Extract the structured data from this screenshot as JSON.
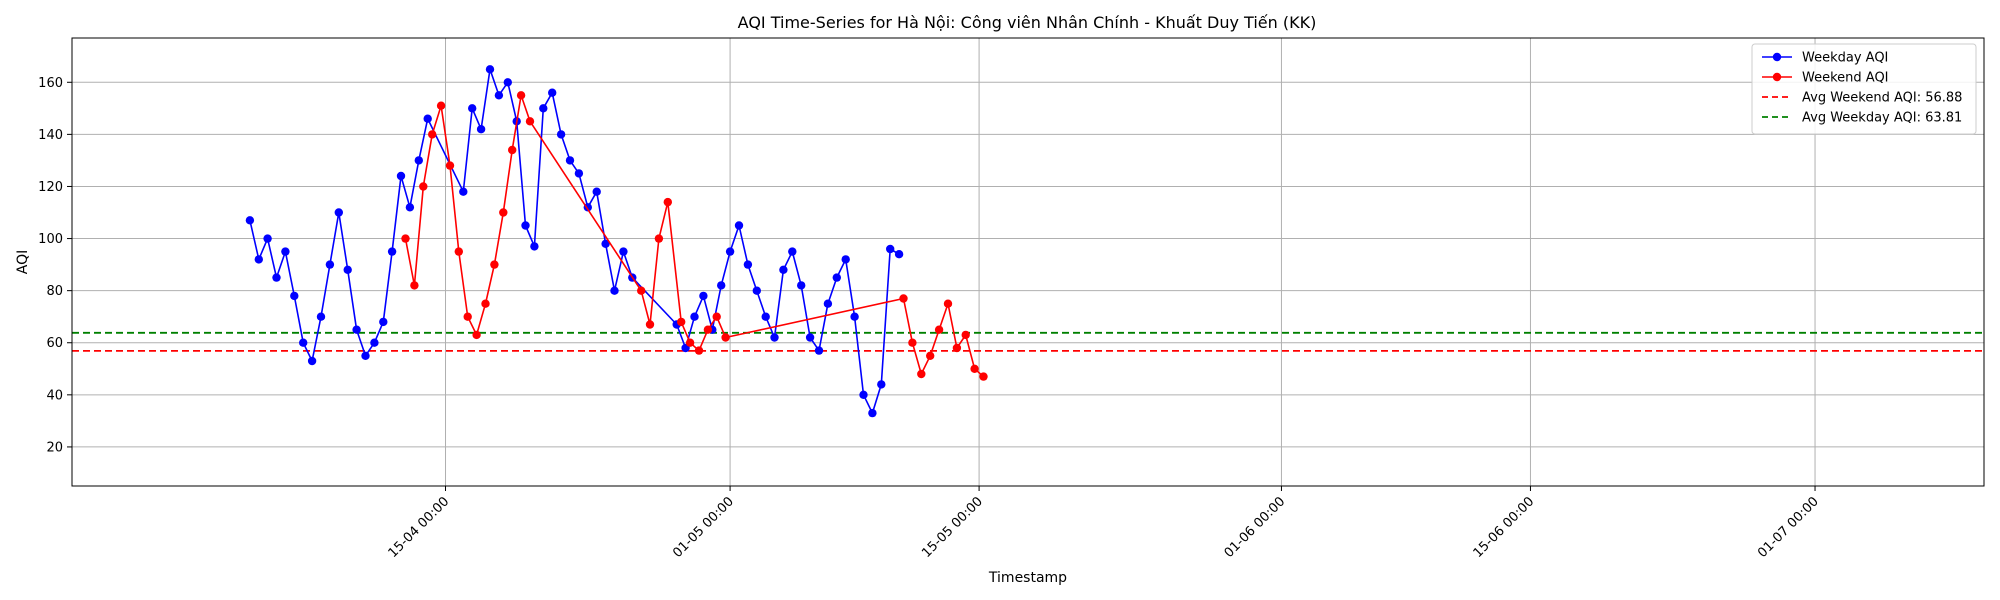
{
  "chart_data": {
    "type": "line",
    "title": "AQI Time-Series for Hà Nội: Công viên Nhân Chính - Khuất Duy Tiến (KK)",
    "xlabel": "Timestamp",
    "ylabel": "AQI",
    "x_axis": {
      "type": "date",
      "range": [
        "2024-03-25T00:00",
        "2024-07-10T12:00"
      ],
      "tick_values": [
        "2024-04-15T00:00",
        "2024-05-01T00:00",
        "2024-05-15T00:00",
        "2024-06-01T00:00",
        "2024-06-15T00:00",
        "2024-07-01T00:00"
      ],
      "tick_labels": [
        "15-04 00:00",
        "01-05 00:00",
        "15-05 00:00",
        "01-06 00:00",
        "15-06 00:00",
        "01-07 00:00"
      ]
    },
    "ylim": [
      5,
      177
    ],
    "y_ticks": [
      20,
      40,
      60,
      80,
      100,
      120,
      140,
      160
    ],
    "grid": true,
    "legend_position": "top-right",
    "series": [
      {
        "name": "Weekday AQI",
        "color": "#0000ff",
        "points": [
          [
            "2024-04-04T00:00",
            107
          ],
          [
            "2024-04-04T12:00",
            92
          ],
          [
            "2024-04-05T00:00",
            100
          ],
          [
            "2024-04-05T12:00",
            85
          ],
          [
            "2024-04-06T00:00",
            95
          ],
          [
            "2024-04-06T12:00",
            78
          ],
          [
            "2024-04-07T00:00",
            60
          ],
          [
            "2024-04-07T12:00",
            53
          ],
          [
            "2024-04-08T00:00",
            70
          ],
          [
            "2024-04-08T12:00",
            90
          ],
          [
            "2024-04-09T00:00",
            110
          ],
          [
            "2024-04-09T12:00",
            88
          ],
          [
            "2024-04-10T00:00",
            65
          ],
          [
            "2024-04-10T12:00",
            55
          ],
          [
            "2024-04-11T00:00",
            60
          ],
          [
            "2024-04-11T12:00",
            68
          ],
          [
            "2024-04-12T00:00",
            95
          ],
          [
            "2024-04-12T12:00",
            124
          ],
          [
            "2024-04-13T00:00",
            112
          ],
          [
            "2024-04-13T12:00",
            130
          ],
          [
            "2024-04-14T00:00",
            146
          ],
          [
            "2024-04-16T00:00",
            118
          ],
          [
            "2024-04-16T12:00",
            150
          ],
          [
            "2024-04-17T00:00",
            142
          ],
          [
            "2024-04-17T12:00",
            165
          ],
          [
            "2024-04-18T00:00",
            155
          ],
          [
            "2024-04-18T12:00",
            160
          ],
          [
            "2024-04-19T00:00",
            145
          ],
          [
            "2024-04-19T12:00",
            105
          ],
          [
            "2024-04-20T00:00",
            97
          ],
          [
            "2024-04-20T12:00",
            150
          ],
          [
            "2024-04-21T00:00",
            156
          ],
          [
            "2024-04-21T12:00",
            140
          ],
          [
            "2024-04-22T00:00",
            130
          ],
          [
            "2024-04-22T12:00",
            125
          ],
          [
            "2024-04-23T00:00",
            112
          ],
          [
            "2024-04-23T12:00",
            118
          ],
          [
            "2024-04-24T00:00",
            98
          ],
          [
            "2024-04-24T12:00",
            80
          ],
          [
            "2024-04-25T00:00",
            95
          ],
          [
            "2024-04-25T12:00",
            85
          ],
          [
            "2024-04-28T00:00",
            67
          ],
          [
            "2024-04-28T12:00",
            58
          ],
          [
            "2024-04-29T00:00",
            70
          ],
          [
            "2024-04-29T12:00",
            78
          ],
          [
            "2024-04-30T00:00",
            65
          ],
          [
            "2024-04-30T12:00",
            82
          ],
          [
            "2024-05-01T00:00",
            95
          ],
          [
            "2024-05-01T12:00",
            105
          ],
          [
            "2024-05-02T00:00",
            90
          ],
          [
            "2024-05-02T12:00",
            80
          ],
          [
            "2024-05-03T00:00",
            70
          ],
          [
            "2024-05-03T12:00",
            62
          ],
          [
            "2024-05-04T00:00",
            88
          ],
          [
            "2024-05-04T12:00",
            95
          ],
          [
            "2024-05-05T00:00",
            82
          ],
          [
            "2024-05-05T12:00",
            62
          ],
          [
            "2024-05-06T00:00",
            57
          ],
          [
            "2024-05-06T12:00",
            75
          ],
          [
            "2024-05-07T00:00",
            85
          ],
          [
            "2024-05-07T12:00",
            92
          ],
          [
            "2024-05-08T00:00",
            70
          ],
          [
            "2024-05-08T12:00",
            40
          ],
          [
            "2024-05-09T00:00",
            33
          ],
          [
            "2024-05-09T12:00",
            44
          ],
          [
            "2024-05-10T00:00",
            96
          ],
          [
            "2024-05-10T12:00",
            94
          ]
        ]
      },
      {
        "name": "Weekend AQI",
        "color": "#ff0000",
        "points": [
          [
            "2024-04-12T18:00",
            100
          ],
          [
            "2024-04-13T06:00",
            82
          ],
          [
            "2024-04-13T18:00",
            120
          ],
          [
            "2024-04-14T06:00",
            140
          ],
          [
            "2024-04-14T18:00",
            151
          ],
          [
            "2024-04-15T06:00",
            128
          ],
          [
            "2024-04-15T18:00",
            95
          ],
          [
            "2024-04-16T06:00",
            70
          ],
          [
            "2024-04-16T18:00",
            63
          ],
          [
            "2024-04-17T06:00",
            75
          ],
          [
            "2024-04-17T18:00",
            90
          ],
          [
            "2024-04-18T06:00",
            110
          ],
          [
            "2024-04-18T18:00",
            134
          ],
          [
            "2024-04-19T06:00",
            155
          ],
          [
            "2024-04-19T18:00",
            145
          ],
          [
            "2024-04-26T00:00",
            80
          ],
          [
            "2024-04-26T12:00",
            67
          ],
          [
            "2024-04-27T00:00",
            100
          ],
          [
            "2024-04-27T12:00",
            114
          ],
          [
            "2024-04-28T06:00",
            68
          ],
          [
            "2024-04-28T18:00",
            60
          ],
          [
            "2024-04-29T06:00",
            57
          ],
          [
            "2024-04-29T18:00",
            65
          ],
          [
            "2024-04-30T06:00",
            70
          ],
          [
            "2024-04-30T18:00",
            62
          ],
          [
            "2024-05-10T18:00",
            77
          ],
          [
            "2024-05-11T06:00",
            60
          ],
          [
            "2024-05-11T18:00",
            48
          ],
          [
            "2024-05-12T06:00",
            55
          ],
          [
            "2024-05-12T18:00",
            65
          ],
          [
            "2024-05-13T06:00",
            75
          ],
          [
            "2024-05-13T18:00",
            58
          ],
          [
            "2024-05-14T06:00",
            63
          ],
          [
            "2024-05-14T18:00",
            50
          ],
          [
            "2024-05-15T06:00",
            47
          ]
        ]
      }
    ],
    "reference_lines": [
      {
        "name": "Avg Weekend AQI: 56.88",
        "value": 56.88,
        "color": "#ff0000",
        "style": "dashed"
      },
      {
        "name": "Avg Weekday AQI: 63.81",
        "value": 63.81,
        "color": "#008000",
        "style": "dashed"
      }
    ]
  }
}
